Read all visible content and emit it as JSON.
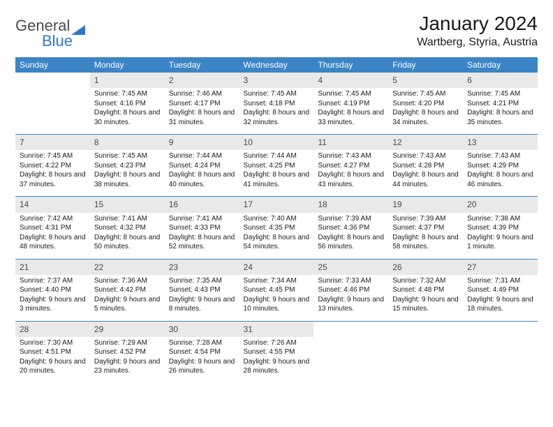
{
  "logo": {
    "text1": "General",
    "text2": "Blue"
  },
  "title": "January 2024",
  "location": "Wartberg, Styria, Austria",
  "columns": [
    "Sunday",
    "Monday",
    "Tuesday",
    "Wednesday",
    "Thursday",
    "Friday",
    "Saturday"
  ],
  "colors": {
    "header_bg": "#3b85c6",
    "header_fg": "#ffffff",
    "daynum_bg": "#e9e9e9",
    "daynum_fg": "#4a4a4a",
    "row_border": "#3b85c6",
    "logo_blue": "#2f78c4",
    "logo_gray": "#4a4a4a",
    "body_text": "#1a1a1a",
    "bg": "#ffffff"
  },
  "typography": {
    "month_title_size": 28,
    "location_size": 16,
    "th_size": 12,
    "daynum_size": 12,
    "cell_size": 10
  },
  "first_dow": 1,
  "days": [
    {
      "n": 1,
      "sunrise": "7:45 AM",
      "sunset": "4:16 PM",
      "dl": "8 hours and 30 minutes."
    },
    {
      "n": 2,
      "sunrise": "7:46 AM",
      "sunset": "4:17 PM",
      "dl": "8 hours and 31 minutes."
    },
    {
      "n": 3,
      "sunrise": "7:45 AM",
      "sunset": "4:18 PM",
      "dl": "8 hours and 32 minutes."
    },
    {
      "n": 4,
      "sunrise": "7:45 AM",
      "sunset": "4:19 PM",
      "dl": "8 hours and 33 minutes."
    },
    {
      "n": 5,
      "sunrise": "7:45 AM",
      "sunset": "4:20 PM",
      "dl": "8 hours and 34 minutes."
    },
    {
      "n": 6,
      "sunrise": "7:45 AM",
      "sunset": "4:21 PM",
      "dl": "8 hours and 35 minutes."
    },
    {
      "n": 7,
      "sunrise": "7:45 AM",
      "sunset": "4:22 PM",
      "dl": "8 hours and 37 minutes."
    },
    {
      "n": 8,
      "sunrise": "7:45 AM",
      "sunset": "4:23 PM",
      "dl": "8 hours and 38 minutes."
    },
    {
      "n": 9,
      "sunrise": "7:44 AM",
      "sunset": "4:24 PM",
      "dl": "8 hours and 40 minutes."
    },
    {
      "n": 10,
      "sunrise": "7:44 AM",
      "sunset": "4:25 PM",
      "dl": "8 hours and 41 minutes."
    },
    {
      "n": 11,
      "sunrise": "7:43 AM",
      "sunset": "4:27 PM",
      "dl": "8 hours and 43 minutes."
    },
    {
      "n": 12,
      "sunrise": "7:43 AM",
      "sunset": "4:28 PM",
      "dl": "8 hours and 44 minutes."
    },
    {
      "n": 13,
      "sunrise": "7:43 AM",
      "sunset": "4:29 PM",
      "dl": "8 hours and 46 minutes."
    },
    {
      "n": 14,
      "sunrise": "7:42 AM",
      "sunset": "4:31 PM",
      "dl": "8 hours and 48 minutes."
    },
    {
      "n": 15,
      "sunrise": "7:41 AM",
      "sunset": "4:32 PM",
      "dl": "8 hours and 50 minutes."
    },
    {
      "n": 16,
      "sunrise": "7:41 AM",
      "sunset": "4:33 PM",
      "dl": "8 hours and 52 minutes."
    },
    {
      "n": 17,
      "sunrise": "7:40 AM",
      "sunset": "4:35 PM",
      "dl": "8 hours and 54 minutes."
    },
    {
      "n": 18,
      "sunrise": "7:39 AM",
      "sunset": "4:36 PM",
      "dl": "8 hours and 56 minutes."
    },
    {
      "n": 19,
      "sunrise": "7:39 AM",
      "sunset": "4:37 PM",
      "dl": "8 hours and 58 minutes."
    },
    {
      "n": 20,
      "sunrise": "7:38 AM",
      "sunset": "4:39 PM",
      "dl": "9 hours and 1 minute."
    },
    {
      "n": 21,
      "sunrise": "7:37 AM",
      "sunset": "4:40 PM",
      "dl": "9 hours and 3 minutes."
    },
    {
      "n": 22,
      "sunrise": "7:36 AM",
      "sunset": "4:42 PM",
      "dl": "9 hours and 5 minutes."
    },
    {
      "n": 23,
      "sunrise": "7:35 AM",
      "sunset": "4:43 PM",
      "dl": "9 hours and 8 minutes."
    },
    {
      "n": 24,
      "sunrise": "7:34 AM",
      "sunset": "4:45 PM",
      "dl": "9 hours and 10 minutes."
    },
    {
      "n": 25,
      "sunrise": "7:33 AM",
      "sunset": "4:46 PM",
      "dl": "9 hours and 13 minutes."
    },
    {
      "n": 26,
      "sunrise": "7:32 AM",
      "sunset": "4:48 PM",
      "dl": "9 hours and 15 minutes."
    },
    {
      "n": 27,
      "sunrise": "7:31 AM",
      "sunset": "4:49 PM",
      "dl": "9 hours and 18 minutes."
    },
    {
      "n": 28,
      "sunrise": "7:30 AM",
      "sunset": "4:51 PM",
      "dl": "9 hours and 20 minutes."
    },
    {
      "n": 29,
      "sunrise": "7:29 AM",
      "sunset": "4:52 PM",
      "dl": "9 hours and 23 minutes."
    },
    {
      "n": 30,
      "sunrise": "7:28 AM",
      "sunset": "4:54 PM",
      "dl": "9 hours and 26 minutes."
    },
    {
      "n": 31,
      "sunrise": "7:26 AM",
      "sunset": "4:55 PM",
      "dl": "9 hours and 28 minutes."
    }
  ]
}
